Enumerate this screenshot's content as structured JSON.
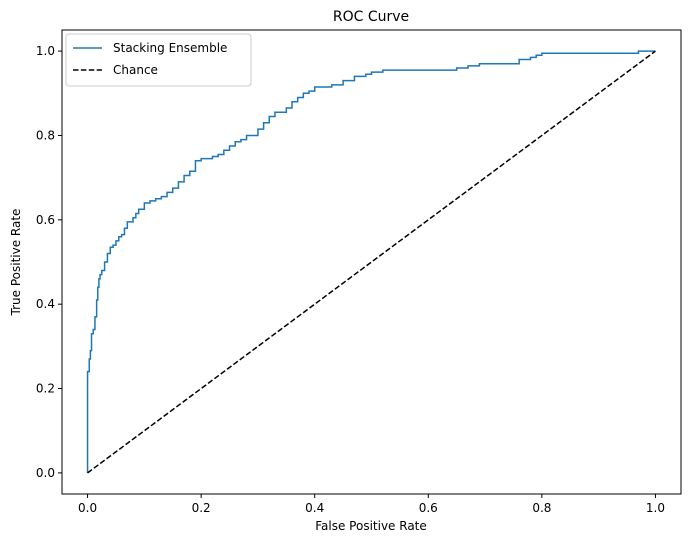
{
  "chart_data": {
    "type": "line",
    "title": "ROC Curve",
    "xlabel": "False Positive Rate",
    "ylabel": "True Positive Rate",
    "xlim": [
      -0.045,
      1.045
    ],
    "ylim": [
      -0.05,
      1.05
    ],
    "xticks": [
      0.0,
      0.2,
      0.4,
      0.6,
      0.8,
      1.0
    ],
    "yticks": [
      0.0,
      0.2,
      0.4,
      0.6,
      0.8,
      1.0
    ],
    "tick_labels": [
      "0.0",
      "0.2",
      "0.4",
      "0.6",
      "0.8",
      "1.0"
    ],
    "grid": false,
    "legend_position": "upper-left",
    "series": [
      {
        "name": "Stacking Ensemble",
        "color": "#1f77b4",
        "style": "solid",
        "step": true,
        "x": [
          0.0,
          0.0,
          0.003,
          0.005,
          0.007,
          0.01,
          0.013,
          0.016,
          0.018,
          0.02,
          0.022,
          0.025,
          0.03,
          0.035,
          0.04,
          0.045,
          0.05,
          0.055,
          0.06,
          0.065,
          0.07,
          0.08,
          0.085,
          0.09,
          0.1,
          0.11,
          0.12,
          0.13,
          0.14,
          0.15,
          0.16,
          0.17,
          0.18,
          0.19,
          0.2,
          0.22,
          0.23,
          0.24,
          0.25,
          0.26,
          0.27,
          0.28,
          0.3,
          0.31,
          0.32,
          0.33,
          0.35,
          0.36,
          0.37,
          0.38,
          0.39,
          0.4,
          0.43,
          0.45,
          0.47,
          0.49,
          0.5,
          0.52,
          0.55,
          0.6,
          0.65,
          0.67,
          0.69,
          0.75,
          0.76,
          0.78,
          0.79,
          0.8,
          0.97,
          1.0
        ],
        "y": [
          0.0,
          0.24,
          0.27,
          0.29,
          0.33,
          0.34,
          0.37,
          0.41,
          0.44,
          0.46,
          0.47,
          0.48,
          0.5,
          0.52,
          0.535,
          0.54,
          0.55,
          0.56,
          0.565,
          0.58,
          0.595,
          0.605,
          0.615,
          0.625,
          0.64,
          0.645,
          0.65,
          0.655,
          0.665,
          0.675,
          0.69,
          0.705,
          0.715,
          0.74,
          0.745,
          0.75,
          0.755,
          0.765,
          0.775,
          0.785,
          0.79,
          0.8,
          0.815,
          0.83,
          0.845,
          0.855,
          0.865,
          0.88,
          0.89,
          0.9,
          0.905,
          0.915,
          0.92,
          0.93,
          0.94,
          0.945,
          0.95,
          0.955,
          0.955,
          0.955,
          0.96,
          0.965,
          0.97,
          0.97,
          0.98,
          0.985,
          0.99,
          0.995,
          1.0,
          1.0
        ]
      },
      {
        "name": "Chance",
        "color": "#000000",
        "style": "dashed",
        "step": false,
        "x": [
          0.0,
          1.0
        ],
        "y": [
          0.0,
          1.0
        ]
      }
    ]
  }
}
